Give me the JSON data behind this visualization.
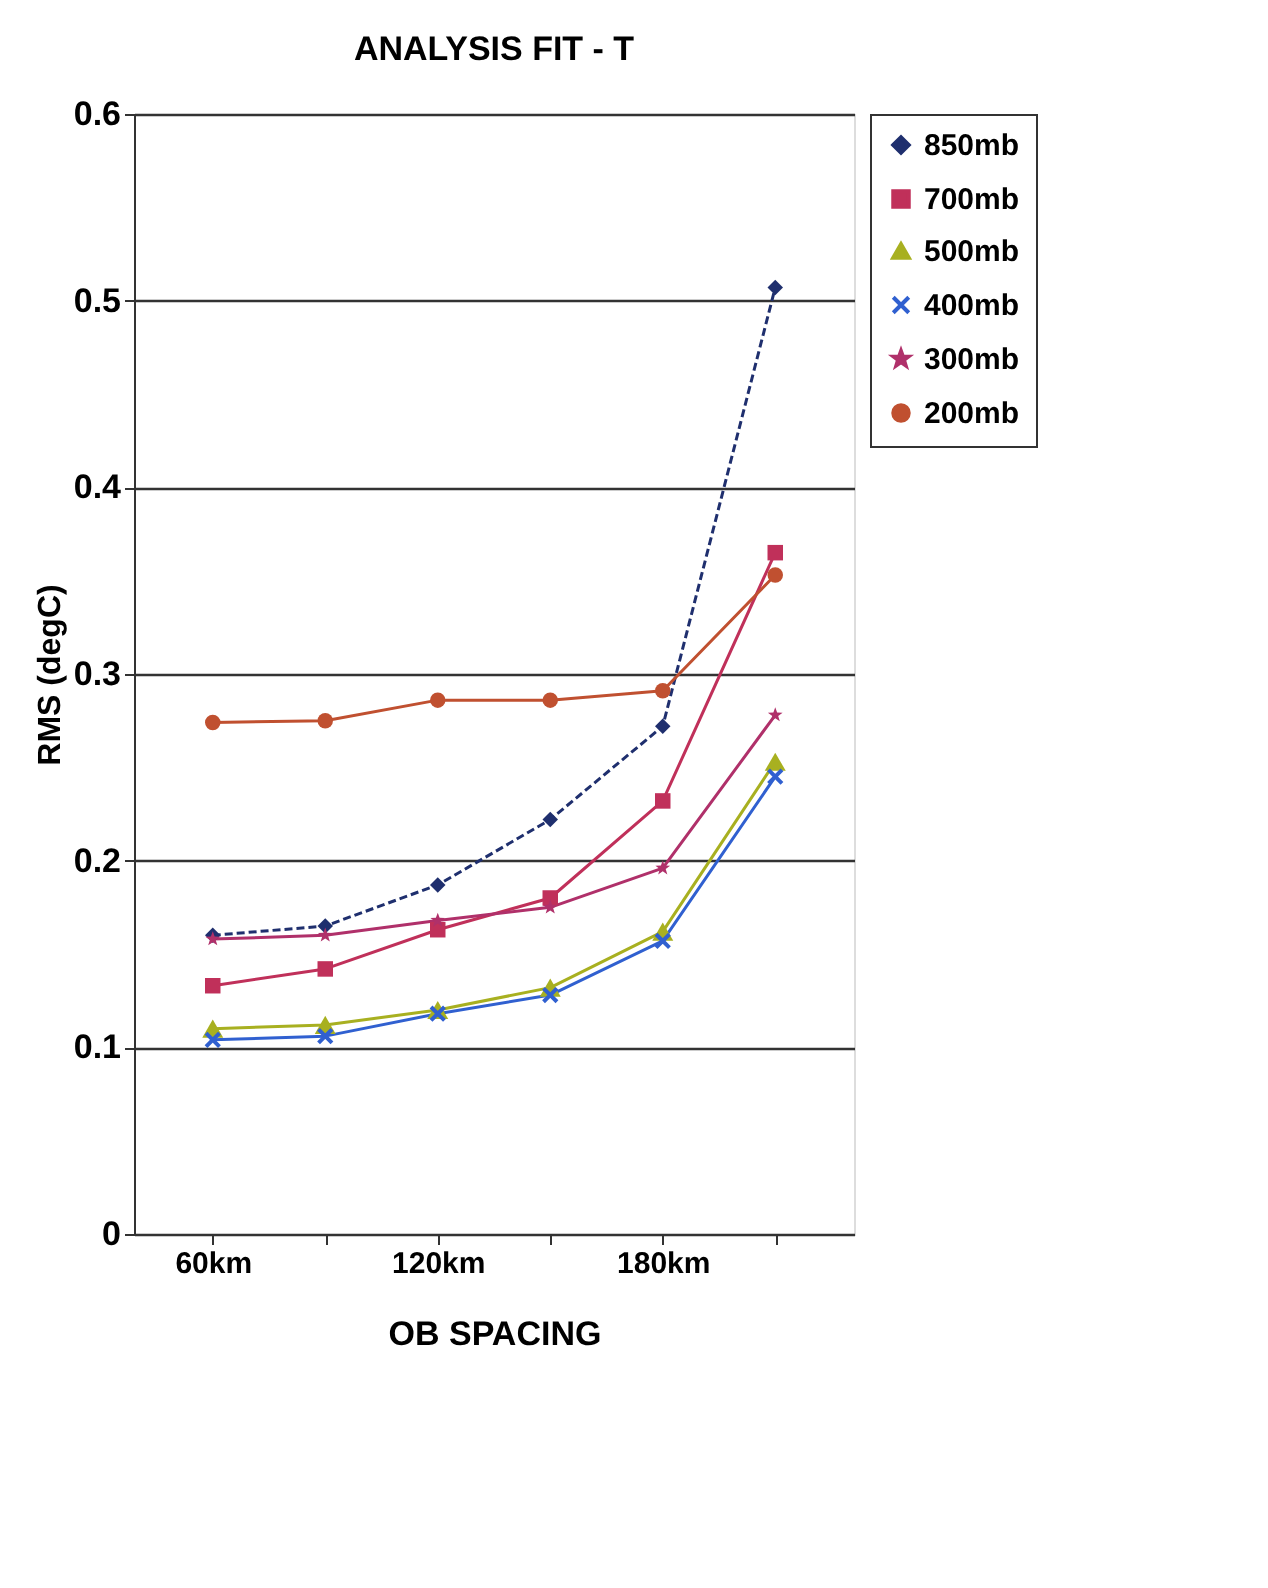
{
  "chart_data": {
    "type": "line",
    "title": "ANALYSIS FIT - T",
    "xlabel": "OB SPACING",
    "ylabel": "RMS (degC)",
    "categories": [
      "60km",
      null,
      "120km",
      null,
      "180km",
      null
    ],
    "ylim": [
      0,
      0.6
    ],
    "yticks": [
      0,
      0.1,
      0.2,
      0.3,
      0.4,
      0.5,
      0.6
    ],
    "grid": "y",
    "legend": "right",
    "series": [
      {
        "name": "850mb",
        "color": "#1f2f6e",
        "marker": "diamond",
        "line_style": "dashed",
        "values": [
          0.16,
          0.165,
          0.187,
          0.222,
          0.272,
          0.507
        ]
      },
      {
        "name": "700mb",
        "color": "#c0305a",
        "marker": "square",
        "values": [
          0.133,
          0.142,
          0.163,
          0.18,
          0.232,
          0.365
        ]
      },
      {
        "name": "500mb",
        "color": "#a8b020",
        "marker": "triangle",
        "values": [
          0.11,
          0.112,
          0.12,
          0.132,
          0.162,
          0.253
        ]
      },
      {
        "name": "400mb",
        "color": "#3060d0",
        "marker": "cross",
        "values": [
          0.104,
          0.106,
          0.118,
          0.128,
          0.157,
          0.245
        ]
      },
      {
        "name": "300mb",
        "color": "#b0306a",
        "marker": "star",
        "values": [
          0.158,
          0.16,
          0.168,
          0.175,
          0.196,
          0.278
        ]
      },
      {
        "name": "200mb",
        "color": "#c05030",
        "marker": "circle",
        "values": [
          0.274,
          0.275,
          0.286,
          0.286,
          0.291,
          0.353
        ]
      }
    ]
  }
}
